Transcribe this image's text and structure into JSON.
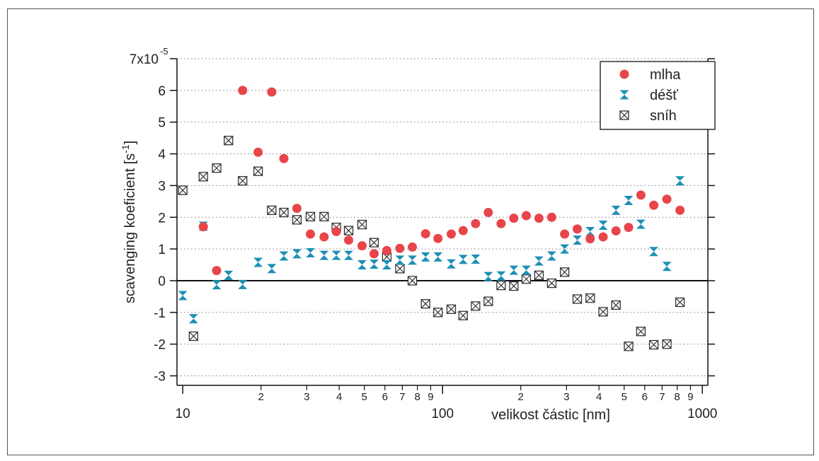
{
  "chart_data": {
    "type": "scatter",
    "title": "",
    "xlabel": "velikost částic [nm]",
    "ylabel": "scavenging koeficient [s",
    "ylabel_sup": "-1",
    "ylabel_tail": "]",
    "x_scale": "log",
    "xlim": [
      9.5,
      1050
    ],
    "ylim": [
      -3.3,
      7
    ],
    "y_multiplier_label": "7x10",
    "y_multiplier_exp": "-5",
    "y_ticks": [
      -3,
      -2,
      -1,
      0,
      1,
      2,
      3,
      4,
      5,
      6
    ],
    "x_major_ticks": [
      {
        "value": 10,
        "label": "10"
      },
      {
        "value": 100,
        "label": "100"
      },
      {
        "value": 1000,
        "label": "1000"
      }
    ],
    "x_minor_ticks": [
      {
        "value": 20,
        "label": "2"
      },
      {
        "value": 30,
        "label": "3"
      },
      {
        "value": 40,
        "label": "4"
      },
      {
        "value": 50,
        "label": "5"
      },
      {
        "value": 60,
        "label": "6"
      },
      {
        "value": 70,
        "label": "7"
      },
      {
        "value": 80,
        "label": "8"
      },
      {
        "value": 90,
        "label": "9"
      },
      {
        "value": 200,
        "label": "2"
      },
      {
        "value": 300,
        "label": "3"
      },
      {
        "value": 400,
        "label": "4"
      },
      {
        "value": 500,
        "label": "5"
      },
      {
        "value": 600,
        "label": "6"
      },
      {
        "value": 700,
        "label": "7"
      },
      {
        "value": 800,
        "label": "8"
      },
      {
        "value": 900,
        "label": "9"
      }
    ],
    "grid": true,
    "zero_line": true,
    "legend_position": "top-right",
    "colors": {
      "mlha": "#e8454a",
      "dest": "#1f8fb5",
      "snih": "#333333"
    },
    "series": [
      {
        "name": "mlha",
        "marker": "circle",
        "x": [
          12,
          13.5,
          17,
          19.5,
          22,
          24.5,
          27.5,
          31,
          35,
          39,
          43.5,
          49,
          54.5,
          61,
          68.5,
          76.5,
          86,
          96,
          108,
          120,
          134,
          150,
          168,
          188,
          210,
          235,
          263,
          295,
          330,
          370,
          415,
          465,
          520,
          580,
          650,
          730,
          820
        ],
        "y": [
          1.7,
          0.32,
          6.0,
          4.05,
          5.95,
          3.85,
          2.28,
          1.47,
          1.38,
          1.55,
          1.28,
          1.1,
          0.85,
          0.95,
          1.02,
          1.06,
          1.48,
          1.33,
          1.47,
          1.58,
          1.8,
          2.15,
          1.8,
          1.97,
          2.05,
          1.97,
          2.0,
          1.47,
          1.63,
          1.32,
          1.38,
          1.57,
          1.68,
          2.7,
          2.38,
          2.57,
          2.22
        ]
      },
      {
        "name": "déšť",
        "marker": "hourglass",
        "x": [
          10,
          11,
          12,
          13.5,
          15,
          17,
          19.5,
          22,
          24.5,
          27.5,
          31,
          35,
          39,
          43.5,
          49,
          54.5,
          61,
          68.5,
          76.5,
          86,
          96,
          108,
          120,
          134,
          150,
          168,
          188,
          210,
          235,
          263,
          295,
          330,
          370,
          415,
          465,
          520,
          580,
          650,
          730,
          820
        ],
        "y": [
          -0.47,
          -1.2,
          1.72,
          -0.13,
          0.17,
          -0.12,
          0.58,
          0.38,
          0.78,
          0.85,
          0.88,
          0.8,
          0.8,
          0.8,
          0.5,
          0.52,
          0.5,
          0.65,
          0.65,
          0.75,
          0.75,
          0.53,
          0.67,
          0.68,
          0.13,
          0.15,
          0.33,
          0.33,
          0.62,
          0.78,
          1.0,
          1.28,
          1.55,
          1.75,
          2.22,
          2.53,
          1.78,
          0.92,
          0.45,
          3.15
        ]
      },
      {
        "name": "sníh",
        "marker": "boxed-x",
        "x": [
          10,
          11,
          12,
          13.5,
          15,
          17,
          19.5,
          22,
          24.5,
          27.5,
          31,
          35,
          39,
          43.5,
          49,
          54.5,
          61,
          68.5,
          76.5,
          86,
          96,
          108,
          120,
          134,
          150,
          168,
          188,
          210,
          235,
          263,
          295,
          330,
          370,
          415,
          465,
          520,
          580,
          650,
          730,
          820
        ],
        "y": [
          2.85,
          -1.75,
          3.28,
          3.55,
          4.42,
          3.15,
          3.45,
          2.22,
          2.15,
          1.92,
          2.02,
          2.02,
          1.68,
          1.58,
          1.77,
          1.2,
          0.75,
          0.38,
          0.0,
          -0.73,
          -1.0,
          -0.9,
          -1.1,
          -0.8,
          -0.65,
          -0.15,
          -0.17,
          0.05,
          0.17,
          -0.08,
          0.27,
          -0.58,
          -0.55,
          -0.98,
          -0.77,
          -2.07,
          -1.6,
          -2.02,
          -2.0,
          -0.68
        ]
      }
    ]
  }
}
